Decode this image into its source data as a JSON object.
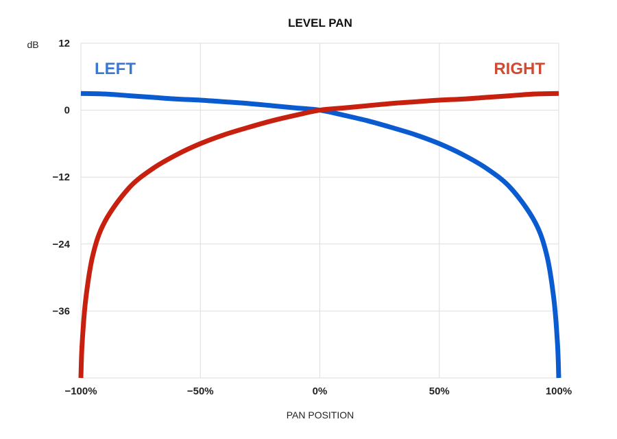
{
  "chart_data": {
    "type": "line",
    "title": "LEVEL PAN",
    "xlabel": "PAN POSITION",
    "ylabel": "dB",
    "xlim": [
      -100,
      100
    ],
    "ylim": [
      -48,
      12
    ],
    "x_ticks": [
      {
        "value": -100,
        "label": "−100%"
      },
      {
        "value": -50,
        "label": "−50%"
      },
      {
        "value": 0,
        "label": "0%"
      },
      {
        "value": 50,
        "label": "50%"
      },
      {
        "value": 100,
        "label": "100%"
      }
    ],
    "y_ticks": [
      {
        "value": 12,
        "label": "12"
      },
      {
        "value": 0,
        "label": "0"
      },
      {
        "value": -12,
        "label": "−12"
      },
      {
        "value": -24,
        "label": "−24"
      },
      {
        "value": -36,
        "label": "−36"
      }
    ],
    "grid": true,
    "series": [
      {
        "name": "LEFT",
        "color": "#0b5bd0",
        "label_color": "#3a78d4",
        "label_position": "top-left",
        "x": [
          -100,
          -90,
          -80,
          -70,
          -60,
          -50,
          -40,
          -30,
          -20,
          -10,
          0,
          10,
          20,
          30,
          40,
          50,
          60,
          70,
          80,
          90,
          95,
          98,
          99.5,
          100
        ],
        "y": [
          3.0,
          2.9,
          2.6,
          2.3,
          2.0,
          1.8,
          1.5,
          1.2,
          0.8,
          0.4,
          0.0,
          -0.9,
          -1.9,
          -3.1,
          -4.4,
          -6.0,
          -8.0,
          -10.5,
          -14.0,
          -20.0,
          -26.0,
          -34.0,
          -42.0,
          -48.0
        ]
      },
      {
        "name": "RIGHT",
        "color": "#c8200f",
        "label_color": "#d24a32",
        "label_position": "top-right",
        "x": [
          -100,
          -99.5,
          -98,
          -95,
          -90,
          -80,
          -70,
          -60,
          -50,
          -40,
          -30,
          -20,
          -10,
          0,
          10,
          20,
          30,
          40,
          50,
          60,
          70,
          80,
          90,
          100
        ],
        "y": [
          -48.0,
          -42.0,
          -34.0,
          -26.0,
          -20.0,
          -14.0,
          -10.5,
          -8.0,
          -6.0,
          -4.4,
          -3.1,
          -1.9,
          -0.9,
          0.0,
          0.4,
          0.8,
          1.2,
          1.5,
          1.8,
          2.0,
          2.3,
          2.6,
          2.9,
          3.0
        ]
      }
    ]
  }
}
